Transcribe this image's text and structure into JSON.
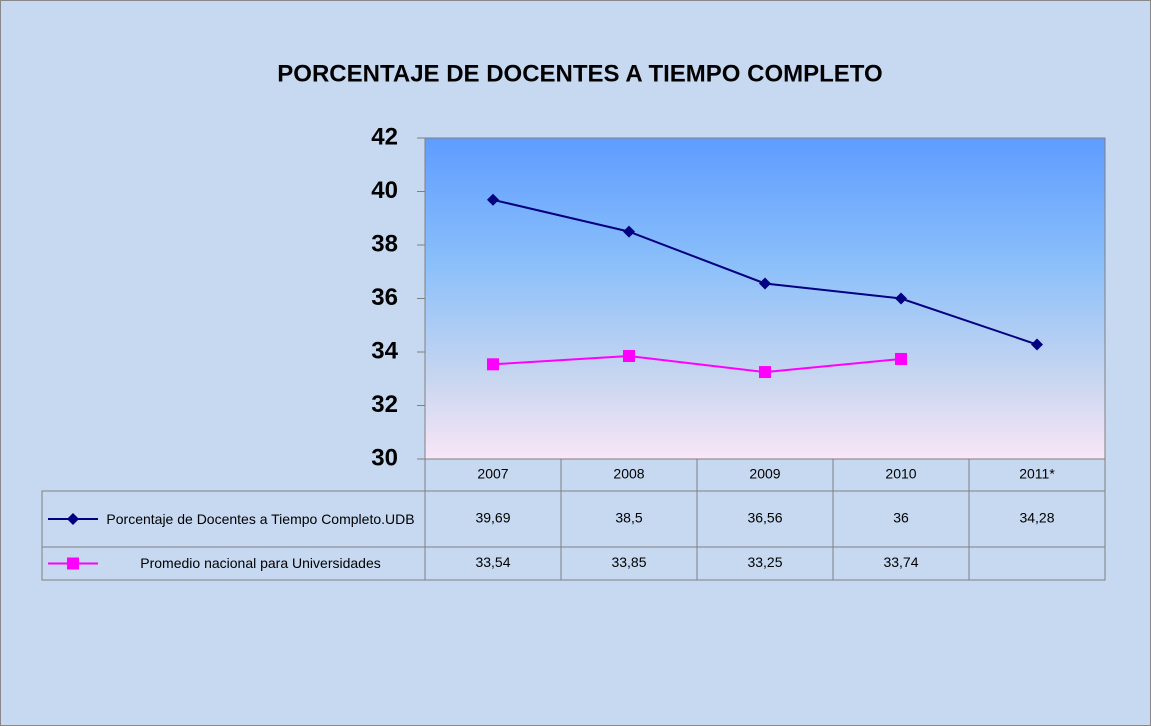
{
  "chart_data": {
    "type": "line",
    "title": "PORCENTAJE DE DOCENTES A TIEMPO COMPLETO",
    "categories": [
      "2007",
      "2008",
      "2009",
      "2010",
      "2011*"
    ],
    "series": [
      {
        "name": "Porcentaje de Docentes a Tiempo Completo.UDB",
        "color": "#000080",
        "marker": "diamond",
        "values": [
          39.69,
          38.5,
          36.56,
          36,
          34.28
        ],
        "value_labels": [
          "39,69",
          "38,5",
          "36,56",
          "36",
          "34,28"
        ]
      },
      {
        "name": "Promedio nacional para Universidades",
        "color": "#ff00ff",
        "marker": "square",
        "values": [
          33.54,
          33.85,
          33.25,
          33.74,
          null
        ],
        "value_labels": [
          "33,54",
          "33,85",
          "33,25",
          "33,74",
          null
        ]
      }
    ],
    "ylim": [
      30,
      42
    ],
    "yticks": [
      30,
      32,
      34,
      36,
      38,
      40,
      42
    ],
    "grid": false
  }
}
